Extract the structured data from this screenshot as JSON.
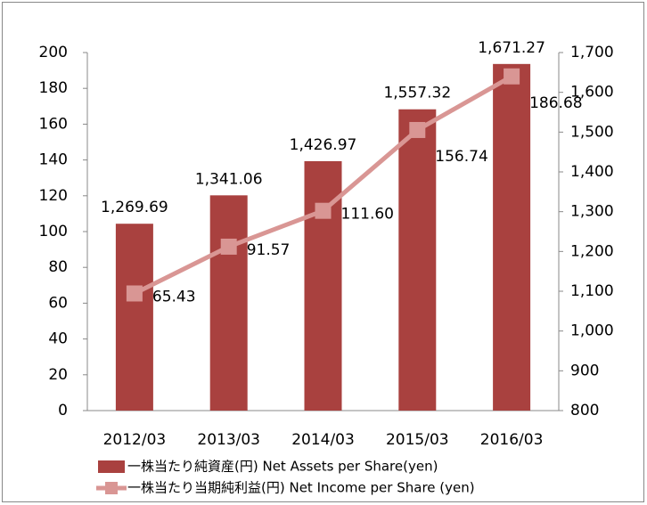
{
  "chart_data": {
    "type": "bar_line",
    "categories": [
      "2012/03",
      "2013/03",
      "2014/03",
      "2015/03",
      "2016/03"
    ],
    "series": [
      {
        "name": "一株当たり純資産(円) Net Assets per Share(yen)",
        "type": "bar",
        "axis": "y2",
        "color": "#a9413f",
        "values": [
          1269.69,
          1341.06,
          1426.97,
          1557.32,
          1671.27
        ],
        "value_labels": [
          "1,269.69",
          "1,341.06",
          "1,426.97",
          "1,557.32",
          "1,671.27"
        ]
      },
      {
        "name": "一株当たり当期純利益(円) Net Income per Share (yen)",
        "type": "line",
        "axis": "y",
        "color": "#d99694",
        "values": [
          65.43,
          91.57,
          111.6,
          156.74,
          186.68
        ],
        "value_labels": [
          "65.43",
          "91.57",
          "111.60",
          "156.74",
          "186.68"
        ]
      }
    ],
    "ylim": [
      0,
      200
    ],
    "yticks": [
      0,
      20,
      40,
      60,
      80,
      100,
      120,
      140,
      160,
      180,
      200
    ],
    "y2lim": [
      800,
      1700
    ],
    "y2ticks": [
      800,
      900,
      {
        "value": 1000,
        "label": "1,000"
      },
      {
        "value": 1100,
        "label": "1,100"
      },
      {
        "value": 1200,
        "label": "1,200"
      },
      {
        "value": 1300,
        "label": "1,300"
      },
      {
        "value": 1400,
        "label": "1,400"
      },
      {
        "value": 1500,
        "label": "1,500"
      },
      {
        "value": 1600,
        "label": "1,600"
      },
      {
        "value": 1700,
        "label": "1,700"
      }
    ],
    "grid": false,
    "legend": "bottom"
  }
}
